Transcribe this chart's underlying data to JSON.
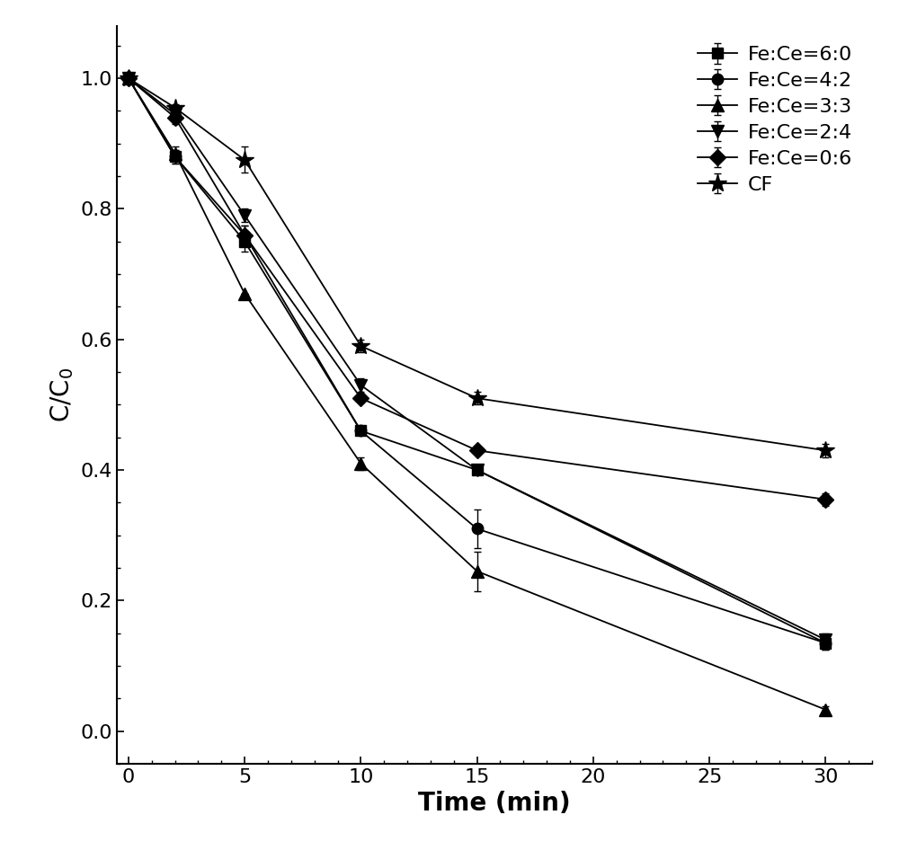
{
  "series": [
    {
      "label": "Fe:Ce=6:0",
      "marker": "s",
      "x": [
        0,
        2,
        5,
        10,
        15,
        30
      ],
      "y": [
        1.0,
        0.88,
        0.75,
        0.46,
        0.4,
        0.135
      ],
      "yerr": [
        0,
        0.01,
        0.015,
        0.0,
        0.0,
        0.01
      ]
    },
    {
      "label": "Fe:Ce=4:2",
      "marker": "o",
      "x": [
        0,
        2,
        5,
        10,
        15,
        30
      ],
      "y": [
        1.0,
        0.88,
        0.76,
        0.46,
        0.31,
        0.135
      ],
      "yerr": [
        0,
        0.01,
        0.015,
        0.0,
        0.03,
        0.01
      ]
    },
    {
      "label": "Fe:Ce=3:3",
      "marker": "^",
      "x": [
        0,
        2,
        5,
        10,
        15,
        30
      ],
      "y": [
        1.0,
        0.885,
        0.67,
        0.41,
        0.245,
        0.033
      ],
      "yerr": [
        0,
        0.01,
        0.0,
        0.01,
        0.03,
        0.005
      ]
    },
    {
      "label": "Fe:Ce=2:4",
      "marker": "v",
      "x": [
        0,
        2,
        5,
        10,
        15,
        30
      ],
      "y": [
        1.0,
        0.945,
        0.79,
        0.53,
        0.4,
        0.14
      ],
      "yerr": [
        0,
        0.01,
        0.01,
        0.01,
        0.0,
        0.01
      ]
    },
    {
      "label": "Fe:Ce=0:6",
      "marker": "D",
      "x": [
        0,
        2,
        5,
        10,
        15,
        30
      ],
      "y": [
        1.0,
        0.94,
        0.76,
        0.51,
        0.43,
        0.355
      ],
      "yerr": [
        0,
        0.01,
        0.015,
        0.0,
        0.0,
        0.01
      ]
    },
    {
      "label": "CF",
      "marker": "*",
      "x": [
        0,
        2,
        5,
        10,
        15,
        30
      ],
      "y": [
        1.0,
        0.955,
        0.875,
        0.59,
        0.51,
        0.43
      ],
      "yerr": [
        0,
        0.005,
        0.02,
        0.01,
        0.01,
        0.01
      ]
    }
  ],
  "xlabel": "Time (min)",
  "ylabel": "C/C$_0$",
  "xlim": [
    -0.5,
    32
  ],
  "ylim": [
    -0.05,
    1.08
  ],
  "xticks": [
    0,
    5,
    10,
    15,
    20,
    25,
    30
  ],
  "yticks": [
    0.0,
    0.2,
    0.4,
    0.6,
    0.8,
    1.0
  ],
  "line_color": "black",
  "marker_color": "black",
  "linewidth": 1.3,
  "legend_loc": "upper right",
  "legend_fontsize": 16,
  "axis_label_fontsize": 20,
  "tick_fontsize": 16
}
